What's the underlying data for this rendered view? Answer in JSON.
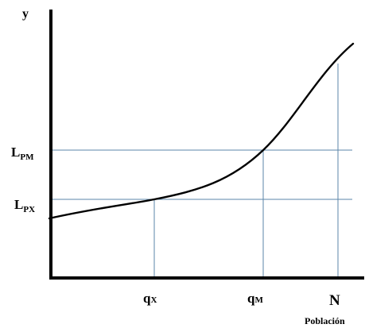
{
  "axes": {
    "y_label": "y",
    "x_label": "Población"
  },
  "y_marks": [
    {
      "main": "L",
      "sub": "PM"
    },
    {
      "main": "L",
      "sub": "PX"
    }
  ],
  "x_marks": [
    {
      "main": "q",
      "sub": "X"
    },
    {
      "main": "q",
      "sub": "M"
    },
    {
      "main": "N",
      "sub": ""
    }
  ],
  "colors": {
    "curve": "#000000",
    "guide_lines": "#5b86a8",
    "axes": "#000000"
  }
}
